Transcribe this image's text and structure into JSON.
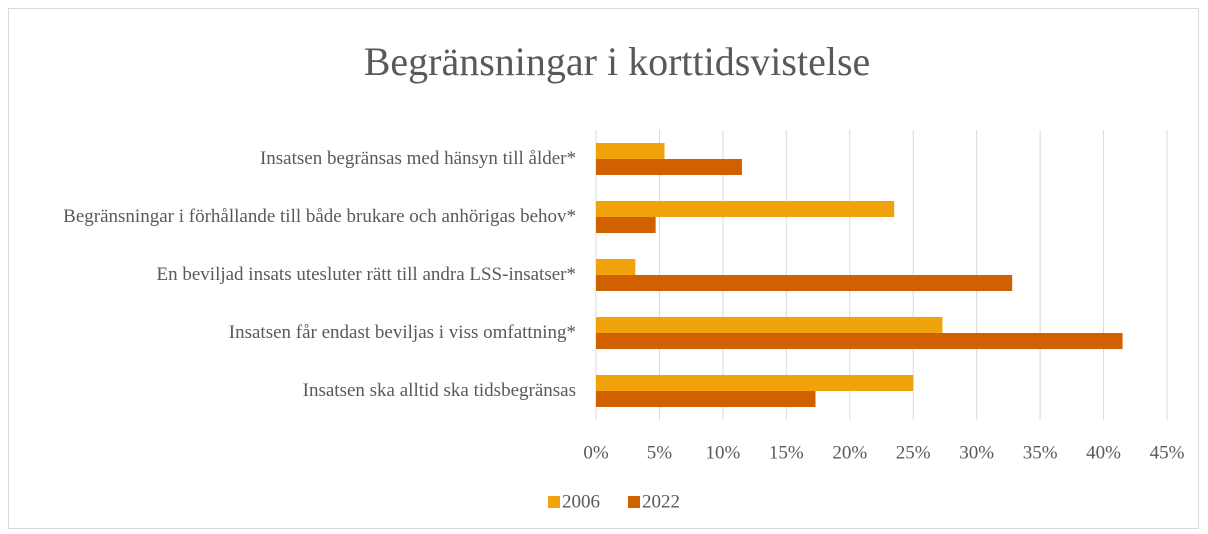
{
  "chart_data": {
    "type": "hbar",
    "title": "Begränsningar i korttidsvistelse",
    "categories": [
      "Insatsen begränsas med hänsyn till ålder*",
      "Begränsningar i förhållande till både brukare och anhörigas behov*",
      "En beviljad insats utesluter rätt till andra LSS-insatser*",
      "Insatsen får endast beviljas i viss omfattning*",
      "Insatsen ska alltid ska tidsbegränsas"
    ],
    "series": [
      {
        "name": "2006",
        "color": "#f0a30a",
        "values": [
          5.4,
          23.5,
          3.1,
          27.3,
          25.0
        ]
      },
      {
        "name": "2022",
        "color": "#d06000",
        "values": [
          11.5,
          4.7,
          32.8,
          41.5,
          17.3
        ]
      }
    ],
    "xlim": [
      0,
      45
    ],
    "xticks": [
      {
        "value": 0,
        "label": "0%"
      },
      {
        "value": 5,
        "label": "5%"
      },
      {
        "value": 10,
        "label": "10%"
      },
      {
        "value": 15,
        "label": "15%"
      },
      {
        "value": 20,
        "label": "20%"
      },
      {
        "value": 25,
        "label": "25%"
      },
      {
        "value": 30,
        "label": "30%"
      },
      {
        "value": 35,
        "label": "35%"
      },
      {
        "value": 40,
        "label": "40%"
      },
      {
        "value": 45,
        "label": "45%"
      }
    ],
    "grid": true,
    "legend": "bottom"
  }
}
